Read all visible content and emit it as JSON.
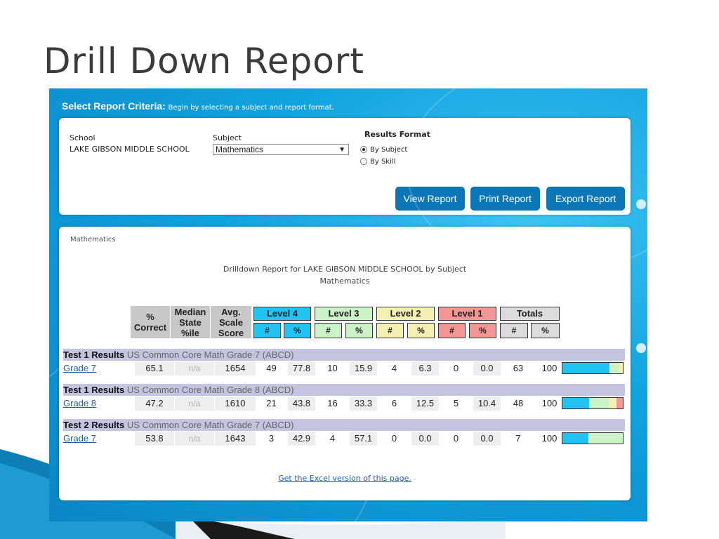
{
  "slide": {
    "title": "Drill Down Report"
  },
  "criteria": {
    "heading": "Select Report Criteria:",
    "subheading": "Begin by selecting a subject and report format.",
    "school_label": "School",
    "school_value": "LAKE GIBSON MIDDLE SCHOOL",
    "subject_label": "Subject",
    "subject_value": "Mathematics",
    "results_format_label": "Results Format",
    "format_options": [
      {
        "label": "By Subject",
        "selected": true
      },
      {
        "label": "By Skill",
        "selected": false
      }
    ],
    "buttons": {
      "view": "View Report",
      "print": "Print Report",
      "export": "Export Report"
    }
  },
  "report": {
    "subject": "Mathematics",
    "title_line1": "Drilldown Report for LAKE GIBSON MIDDLE SCHOOL by Subject",
    "title_line2": "Mathematics",
    "headers": {
      "pct_correct_1": "%",
      "pct_correct_2": "Correct",
      "median_1": "Median",
      "median_2": "State",
      "median_3": "%ile",
      "avg_1": "Avg.",
      "avg_2": "Scale",
      "avg_3": "Score",
      "level4": "Level 4",
      "level3": "Level 3",
      "level2": "Level 2",
      "level1": "Level 1",
      "totals": "Totals",
      "num": "#",
      "pct": "%"
    },
    "groups": [
      {
        "label": "Test 1 Results",
        "test": "US Common Core Math Grade 7 (ABCD)",
        "row": {
          "grade": "Grade 7",
          "pct_correct": "65.1",
          "median": "n/a",
          "avg": "1654",
          "l4n": "49",
          "l4p": "77.8",
          "l3n": "10",
          "l3p": "15.9",
          "l2n": "4",
          "l2p": "6.3",
          "l1n": "0",
          "l1p": "0.0",
          "tn": "63",
          "tp": "100"
        },
        "bar": [
          77.8,
          15.9,
          6.3,
          0.0
        ]
      },
      {
        "label": "Test 1 Results",
        "test": "US Common Core Math Grade 8 (ABCD)",
        "row": {
          "grade": "Grade 8",
          "pct_correct": "47.2",
          "median": "n/a",
          "avg": "1610",
          "l4n": "21",
          "l4p": "43.8",
          "l3n": "16",
          "l3p": "33.3",
          "l2n": "6",
          "l2p": "12.5",
          "l1n": "5",
          "l1p": "10.4",
          "tn": "48",
          "tp": "100"
        },
        "bar": [
          43.8,
          33.3,
          12.5,
          10.4
        ]
      },
      {
        "label": "Test 2 Results",
        "test": "US Common Core Math Grade 7 (ABCD)",
        "row": {
          "grade": "Grade 7",
          "pct_correct": "53.8",
          "median": "n/a",
          "avg": "1643",
          "l4n": "3",
          "l4p": "42.9",
          "l3n": "4",
          "l3p": "57.1",
          "l2n": "0",
          "l2p": "0.0",
          "l1n": "0",
          "l1p": "0.0",
          "tn": "7",
          "tp": "100"
        },
        "bar": [
          42.9,
          57.1,
          0.0,
          0.0
        ]
      }
    ],
    "excel_link": "Get the Excel version of this page.",
    "level_colors": {
      "level4": "#21c3f2",
      "level3": "#ccf2c7",
      "level2": "#f5f0b2",
      "level1": "#f49596"
    }
  }
}
